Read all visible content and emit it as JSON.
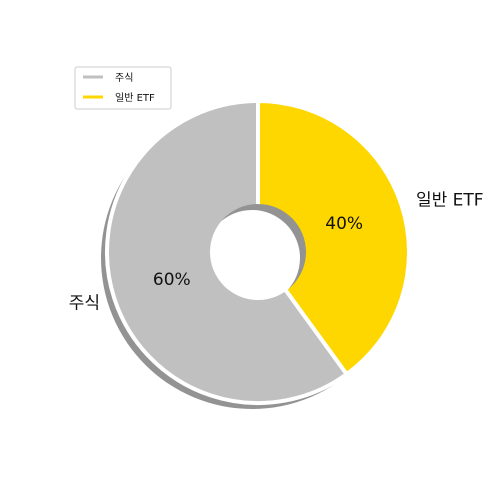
{
  "chart_data": {
    "type": "pie",
    "title": "",
    "categories": [
      "주식",
      "일반 ETF"
    ],
    "values": [
      60,
      40
    ],
    "percent_labels": [
      "60%",
      "40%"
    ],
    "colors": [
      "#c0c0c0",
      "#ffd700"
    ],
    "donut": true,
    "shadow": true,
    "legend_position": "top-left"
  }
}
